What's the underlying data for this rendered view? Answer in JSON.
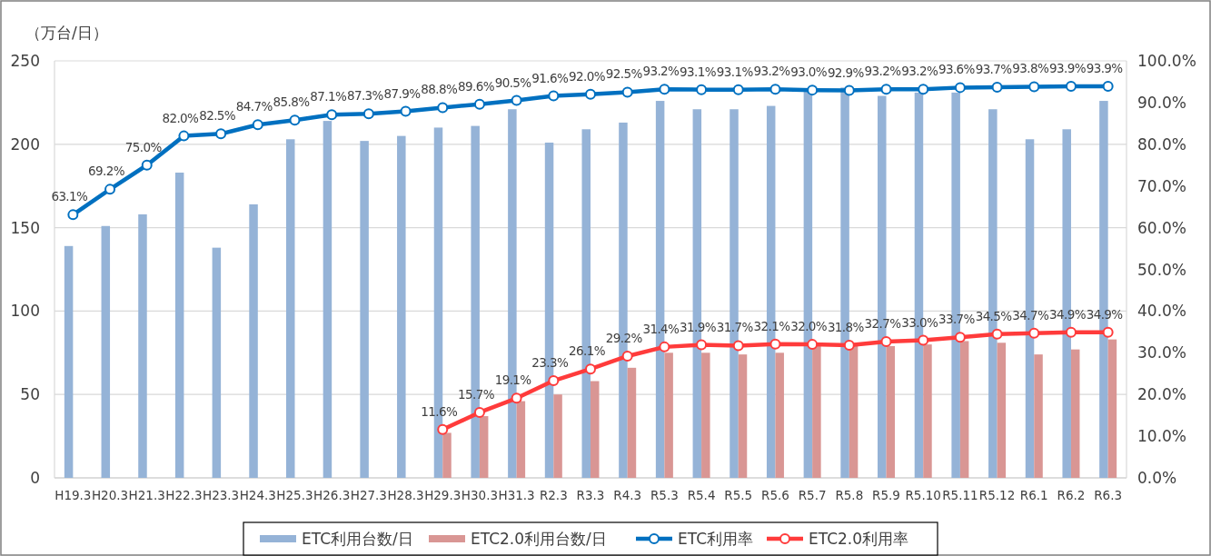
{
  "chart_data": {
    "type": "bar",
    "ylabel": "（万台/日）",
    "categories": [
      "H19.3",
      "H20.3",
      "H21.3",
      "H22.3",
      "H23.3",
      "H24.3",
      "H25.3",
      "H26.3",
      "H27.3",
      "H28.3",
      "H29.3",
      "H30.3",
      "H31.3",
      "R2.3",
      "R3.3",
      "R4.3",
      "R5.3",
      "R5.4",
      "R5.5",
      "R5.6",
      "R5.7",
      "R5.8",
      "R5.9",
      "R5.10",
      "R5.11",
      "R5.12",
      "R6.1",
      "R6.2",
      "R6.3"
    ],
    "series": [
      {
        "name": "ETC利用台数/日",
        "color": "#95b3d7",
        "values": [
          139,
          151,
          158,
          183,
          138,
          164,
          203,
          214,
          202,
          205,
          210,
          211,
          221,
          201,
          209,
          213,
          226,
          221,
          221,
          223,
          233,
          234,
          229,
          231,
          231,
          221,
          203,
          209,
          226
        ]
      },
      {
        "name": "ETC2.0利用台数/日",
        "color": "#d99694",
        "values": [
          null,
          null,
          null,
          null,
          null,
          null,
          null,
          null,
          null,
          null,
          27,
          37,
          46,
          50,
          58,
          66,
          75,
          75,
          74,
          75,
          79,
          79,
          79,
          80,
          82,
          81,
          74,
          77,
          83
        ]
      },
      {
        "name": "ETC利用率",
        "type": "line",
        "axis": "y2",
        "color": "#0070c0",
        "marker": "circle",
        "values": [
          63.1,
          69.2,
          75.0,
          82.0,
          82.5,
          84.7,
          85.8,
          87.1,
          87.3,
          87.9,
          88.8,
          89.6,
          90.5,
          91.6,
          92.0,
          92.5,
          93.2,
          93.1,
          93.1,
          93.2,
          93.0,
          92.9,
          93.2,
          93.2,
          93.6,
          93.7,
          93.8,
          93.9,
          93.9
        ],
        "value_labels": [
          "63.1%",
          "69.2%",
          "75.0%",
          "82.0%",
          "82.5%",
          "84.7%",
          "85.8%",
          "87.1%",
          "87.3%",
          "87.9%",
          "88.8%",
          "89.6%",
          "90.5%",
          "91.6%",
          "92.0%",
          "92.5%",
          "93.2%",
          "93.1%",
          "93.1%",
          "93.2%",
          "93.0%",
          "92.9%",
          "93.2%",
          "93.2%",
          "93.6%",
          "93.7%",
          "93.8%",
          "93.9%",
          "93.9%"
        ]
      },
      {
        "name": "ETC2.0利用率",
        "type": "line",
        "axis": "y2",
        "color": "#ff3b3b",
        "marker": "circle",
        "values": [
          null,
          null,
          null,
          null,
          null,
          null,
          null,
          null,
          null,
          null,
          11.6,
          15.7,
          19.1,
          23.3,
          26.1,
          29.2,
          31.4,
          31.9,
          31.7,
          32.1,
          32.0,
          31.8,
          32.7,
          33.0,
          33.7,
          34.5,
          34.7,
          34.9,
          34.9
        ],
        "value_labels": [
          null,
          null,
          null,
          null,
          null,
          null,
          null,
          null,
          null,
          null,
          "11.6%",
          "15.7%",
          "19.1%",
          "23.3%",
          "26.1%",
          "29.2%",
          "31.4%",
          "31.9%",
          "31.7%",
          "32.1%",
          "32.0%",
          "31.8%",
          "32.7%",
          "33.0%",
          "33.7%",
          "34.5%",
          "34.7%",
          "34.9%",
          "34.9%"
        ]
      }
    ],
    "ylim": [
      0,
      250
    ],
    "yticks": [
      0,
      50,
      100,
      150,
      200,
      250
    ],
    "y2lim": [
      0,
      100
    ],
    "y2ticks": [
      {
        "value": 0,
        "label": "0.0%"
      },
      {
        "value": 10,
        "label": "10.0%"
      },
      {
        "value": 20,
        "label": "20.0%"
      },
      {
        "value": 30,
        "label": "30.0%"
      },
      {
        "value": 40,
        "label": "40.0%"
      },
      {
        "value": 50,
        "label": "50.0%"
      },
      {
        "value": 60,
        "label": "60.0%"
      },
      {
        "value": 70,
        "label": "70.0%"
      },
      {
        "value": 80,
        "label": "80.0%"
      },
      {
        "value": 90,
        "label": "90.0%"
      },
      {
        "value": 100,
        "label": "100.0%"
      }
    ],
    "grid": "y",
    "legend": "bottom"
  }
}
